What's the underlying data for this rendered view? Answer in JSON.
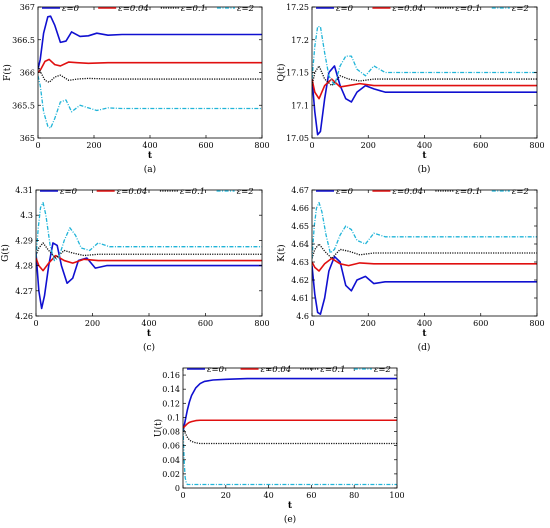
{
  "colors": {
    "eps0": "#1010d0",
    "eps004": "#e01010",
    "eps01": "#111111",
    "eps2": "#20b4d8"
  },
  "legend": [
    {
      "label": "ε=0",
      "color": "#1010d0",
      "style": "solid"
    },
    {
      "label": "ε=0.04",
      "color": "#e01010",
      "style": "solid"
    },
    {
      "label": "ε=0.1",
      "color": "#111111",
      "style": "dotted"
    },
    {
      "label": "ε=2",
      "color": "#20b4d8",
      "style": "dashdot"
    }
  ],
  "chart_data": [
    {
      "type": "line",
      "caption": "(a)",
      "ylabel": "F(t)",
      "xlabel": "t",
      "xlim": [
        0,
        800
      ],
      "ylim": [
        365,
        367
      ],
      "xticks": [
        0,
        200,
        400,
        600,
        800
      ],
      "yticks": [
        365,
        365.5,
        366,
        366.5,
        367
      ],
      "ytick_labels": [
        "365",
        "365.5",
        "366",
        "366.5",
        "367"
      ],
      "legend_position": "top",
      "series": [
        {
          "name": "ε=0",
          "x": [
            0,
            8,
            20,
            35,
            45,
            60,
            80,
            100,
            120,
            150,
            180,
            210,
            250,
            300,
            400,
            600,
            800
          ],
          "y": [
            366.05,
            366.2,
            366.6,
            366.85,
            366.86,
            366.72,
            366.46,
            366.48,
            366.62,
            366.55,
            366.56,
            366.6,
            366.57,
            366.58,
            366.58,
            366.58,
            366.58
          ]
        },
        {
          "name": "ε=0.04",
          "x": [
            0,
            10,
            25,
            40,
            60,
            80,
            110,
            140,
            180,
            250,
            400,
            800
          ],
          "y": [
            366.0,
            366.05,
            366.17,
            366.2,
            366.12,
            366.1,
            366.16,
            366.15,
            366.14,
            366.15,
            366.15,
            366.15
          ]
        },
        {
          "name": "ε=0.1",
          "x": [
            0,
            10,
            25,
            40,
            60,
            80,
            110,
            140,
            180,
            250,
            400,
            800
          ],
          "y": [
            366.1,
            366.0,
            365.88,
            365.85,
            365.93,
            365.96,
            365.88,
            365.9,
            365.91,
            365.9,
            365.9,
            365.9
          ]
        },
        {
          "name": "ε=2",
          "x": [
            0,
            8,
            20,
            35,
            45,
            60,
            80,
            100,
            120,
            150,
            180,
            210,
            250,
            300,
            400,
            600,
            800
          ],
          "y": [
            365.95,
            365.8,
            365.4,
            365.18,
            365.15,
            365.3,
            365.55,
            365.58,
            365.4,
            365.5,
            365.46,
            365.42,
            365.46,
            365.45,
            365.45,
            365.45,
            365.45
          ]
        }
      ]
    },
    {
      "type": "line",
      "caption": "(b)",
      "ylabel": "Q(t)",
      "xlabel": "t",
      "xlim": [
        0,
        800
      ],
      "ylim": [
        17.05,
        17.25
      ],
      "xticks": [
        0,
        200,
        400,
        600,
        800
      ],
      "yticks": [
        17.05,
        17.1,
        17.15,
        17.2,
        17.25
      ],
      "ytick_labels": [
        "17.05",
        "17.1",
        "17.15",
        "17.2",
        "17.25"
      ],
      "legend_position": "top",
      "series": [
        {
          "name": "ε=0",
          "x": [
            0,
            10,
            20,
            30,
            45,
            60,
            80,
            100,
            120,
            140,
            160,
            190,
            220,
            260,
            300,
            400,
            600,
            800
          ],
          "y": [
            17.14,
            17.09,
            17.055,
            17.06,
            17.11,
            17.15,
            17.16,
            17.13,
            17.11,
            17.105,
            17.12,
            17.13,
            17.125,
            17.12,
            17.12,
            17.12,
            17.12,
            17.12
          ]
        },
        {
          "name": "ε=0.04",
          "x": [
            0,
            10,
            25,
            45,
            70,
            100,
            130,
            170,
            220,
            300,
            400,
            800
          ],
          "y": [
            17.14,
            17.12,
            17.11,
            17.13,
            17.14,
            17.128,
            17.13,
            17.133,
            17.13,
            17.13,
            17.13,
            17.13
          ]
        },
        {
          "name": "ε=0.1",
          "x": [
            0,
            10,
            25,
            45,
            70,
            100,
            130,
            170,
            220,
            300,
            400,
            800
          ],
          "y": [
            17.13,
            17.15,
            17.16,
            17.14,
            17.13,
            17.145,
            17.14,
            17.137,
            17.14,
            17.14,
            17.14,
            17.14
          ]
        },
        {
          "name": "ε=2",
          "x": [
            0,
            10,
            20,
            30,
            45,
            60,
            80,
            100,
            120,
            140,
            160,
            190,
            220,
            260,
            300,
            400,
            600,
            800
          ],
          "y": [
            17.14,
            17.19,
            17.22,
            17.22,
            17.18,
            17.145,
            17.13,
            17.16,
            17.175,
            17.175,
            17.155,
            17.145,
            17.16,
            17.15,
            17.15,
            17.15,
            17.15,
            17.15
          ]
        }
      ]
    },
    {
      "type": "line",
      "caption": "(c)",
      "ylabel": "G(t)",
      "xlabel": "t",
      "xlim": [
        0,
        800
      ],
      "ylim": [
        4.26,
        4.31
      ],
      "xticks": [
        0,
        200,
        400,
        600,
        800
      ],
      "yticks": [
        4.26,
        4.27,
        4.28,
        4.29,
        4.3,
        4.31
      ],
      "ytick_labels": [
        "4.26",
        "4.27",
        "4.28",
        "4.29",
        "4.3",
        "4.31"
      ],
      "legend_position": "top",
      "series": [
        {
          "name": "ε=0",
          "x": [
            0,
            10,
            20,
            30,
            45,
            60,
            75,
            90,
            110,
            130,
            150,
            180,
            210,
            250,
            300,
            400,
            600,
            800
          ],
          "y": [
            4.285,
            4.27,
            4.263,
            4.268,
            4.28,
            4.289,
            4.288,
            4.28,
            4.273,
            4.275,
            4.282,
            4.283,
            4.279,
            4.28,
            4.28,
            4.28,
            4.28,
            4.28
          ]
        },
        {
          "name": "ε=0.04",
          "x": [
            0,
            10,
            25,
            45,
            70,
            100,
            130,
            170,
            220,
            300,
            400,
            800
          ],
          "y": [
            4.283,
            4.28,
            4.278,
            4.281,
            4.284,
            4.282,
            4.281,
            4.2825,
            4.282,
            4.282,
            4.282,
            4.282
          ]
        },
        {
          "name": "ε=0.1",
          "x": [
            0,
            10,
            25,
            45,
            70,
            100,
            130,
            170,
            220,
            300,
            400,
            800
          ],
          "y": [
            4.284,
            4.287,
            4.289,
            4.286,
            4.283,
            4.286,
            4.285,
            4.284,
            4.2845,
            4.2845,
            4.2845,
            4.2845
          ]
        },
        {
          "name": "ε=2",
          "x": [
            0,
            8,
            16,
            25,
            35,
            50,
            65,
            80,
            100,
            120,
            140,
            160,
            190,
            220,
            260,
            300,
            400,
            600,
            800
          ],
          "y": [
            4.283,
            4.295,
            4.303,
            4.305,
            4.3,
            4.288,
            4.282,
            4.283,
            4.29,
            4.295,
            4.292,
            4.287,
            4.286,
            4.289,
            4.2875,
            4.2875,
            4.2875,
            4.2875,
            4.2875
          ]
        }
      ]
    },
    {
      "type": "line",
      "caption": "(d)",
      "ylabel": "K(t)",
      "xlabel": "t",
      "xlim": [
        0,
        800
      ],
      "ylim": [
        4.6,
        4.67
      ],
      "xticks": [
        0,
        200,
        400,
        600,
        800
      ],
      "yticks": [
        4.6,
        4.61,
        4.62,
        4.63,
        4.64,
        4.65,
        4.66,
        4.67
      ],
      "ytick_labels": [
        "4.6",
        "4.61",
        "4.62",
        "4.63",
        "4.64",
        "4.65",
        "4.66",
        "4.67"
      ],
      "legend_position": "top",
      "series": [
        {
          "name": "ε=0",
          "x": [
            0,
            10,
            20,
            30,
            45,
            60,
            80,
            100,
            120,
            140,
            160,
            190,
            220,
            260,
            300,
            400,
            600,
            800
          ],
          "y": [
            4.628,
            4.612,
            4.602,
            4.601,
            4.61,
            4.625,
            4.633,
            4.63,
            4.617,
            4.614,
            4.62,
            4.622,
            4.618,
            4.619,
            4.619,
            4.619,
            4.619,
            4.619
          ]
        },
        {
          "name": "ε=0.04",
          "x": [
            0,
            10,
            25,
            45,
            70,
            100,
            130,
            170,
            220,
            300,
            400,
            800
          ],
          "y": [
            4.63,
            4.627,
            4.625,
            4.629,
            4.632,
            4.629,
            4.628,
            4.6295,
            4.629,
            4.629,
            4.629,
            4.629
          ]
        },
        {
          "name": "ε=0.1",
          "x": [
            0,
            10,
            25,
            45,
            70,
            100,
            130,
            170,
            220,
            300,
            400,
            800
          ],
          "y": [
            4.632,
            4.637,
            4.64,
            4.636,
            4.632,
            4.637,
            4.636,
            4.634,
            4.635,
            4.635,
            4.635,
            4.635
          ]
        },
        {
          "name": "ε=2",
          "x": [
            0,
            8,
            16,
            25,
            35,
            50,
            65,
            80,
            100,
            120,
            140,
            160,
            190,
            220,
            260,
            300,
            400,
            600,
            800
          ],
          "y": [
            4.632,
            4.65,
            4.66,
            4.663,
            4.658,
            4.645,
            4.635,
            4.637,
            4.645,
            4.65,
            4.648,
            4.642,
            4.64,
            4.646,
            4.644,
            4.644,
            4.644,
            4.644,
            4.644
          ]
        }
      ]
    },
    {
      "type": "line",
      "caption": "(e)",
      "ylabel": "U(t)",
      "xlabel": "t",
      "xlim": [
        0,
        100
      ],
      "ylim": [
        0,
        0.17
      ],
      "xticks": [
        0,
        20,
        40,
        60,
        80,
        100
      ],
      "yticks": [
        0,
        0.02,
        0.04,
        0.06,
        0.08,
        0.1,
        0.12,
        0.14,
        0.16
      ],
      "ytick_labels": [
        "0",
        "0.02",
        "0.04",
        "0.06",
        "0.08",
        "0.1",
        "0.12",
        "0.14",
        "0.16"
      ],
      "legend_position": "top",
      "series": [
        {
          "name": "ε=0",
          "x": [
            0,
            1,
            2,
            3,
            4,
            6,
            8,
            10,
            14,
            20,
            30,
            50,
            100
          ],
          "y": [
            0.08,
            0.095,
            0.11,
            0.122,
            0.131,
            0.142,
            0.148,
            0.151,
            0.153,
            0.154,
            0.155,
            0.155,
            0.155
          ]
        },
        {
          "name": "ε=0.04",
          "x": [
            0,
            1,
            2,
            3,
            4,
            6,
            8,
            10,
            15,
            20,
            100
          ],
          "y": [
            0.085,
            0.088,
            0.091,
            0.093,
            0.094,
            0.0955,
            0.096,
            0.096,
            0.096,
            0.096,
            0.096
          ]
        },
        {
          "name": "ε=0.1",
          "x": [
            0,
            1,
            2,
            3,
            4,
            6,
            8,
            10,
            15,
            20,
            100
          ],
          "y": [
            0.085,
            0.078,
            0.072,
            0.068,
            0.066,
            0.064,
            0.063,
            0.063,
            0.063,
            0.063,
            0.063
          ]
        },
        {
          "name": "ε=2",
          "x": [
            0,
            0.3,
            0.6,
            1,
            1.5,
            2,
            3,
            100
          ],
          "y": [
            0.085,
            0.06,
            0.035,
            0.015,
            0.008,
            0.005,
            0.005,
            0.005
          ]
        }
      ]
    }
  ]
}
